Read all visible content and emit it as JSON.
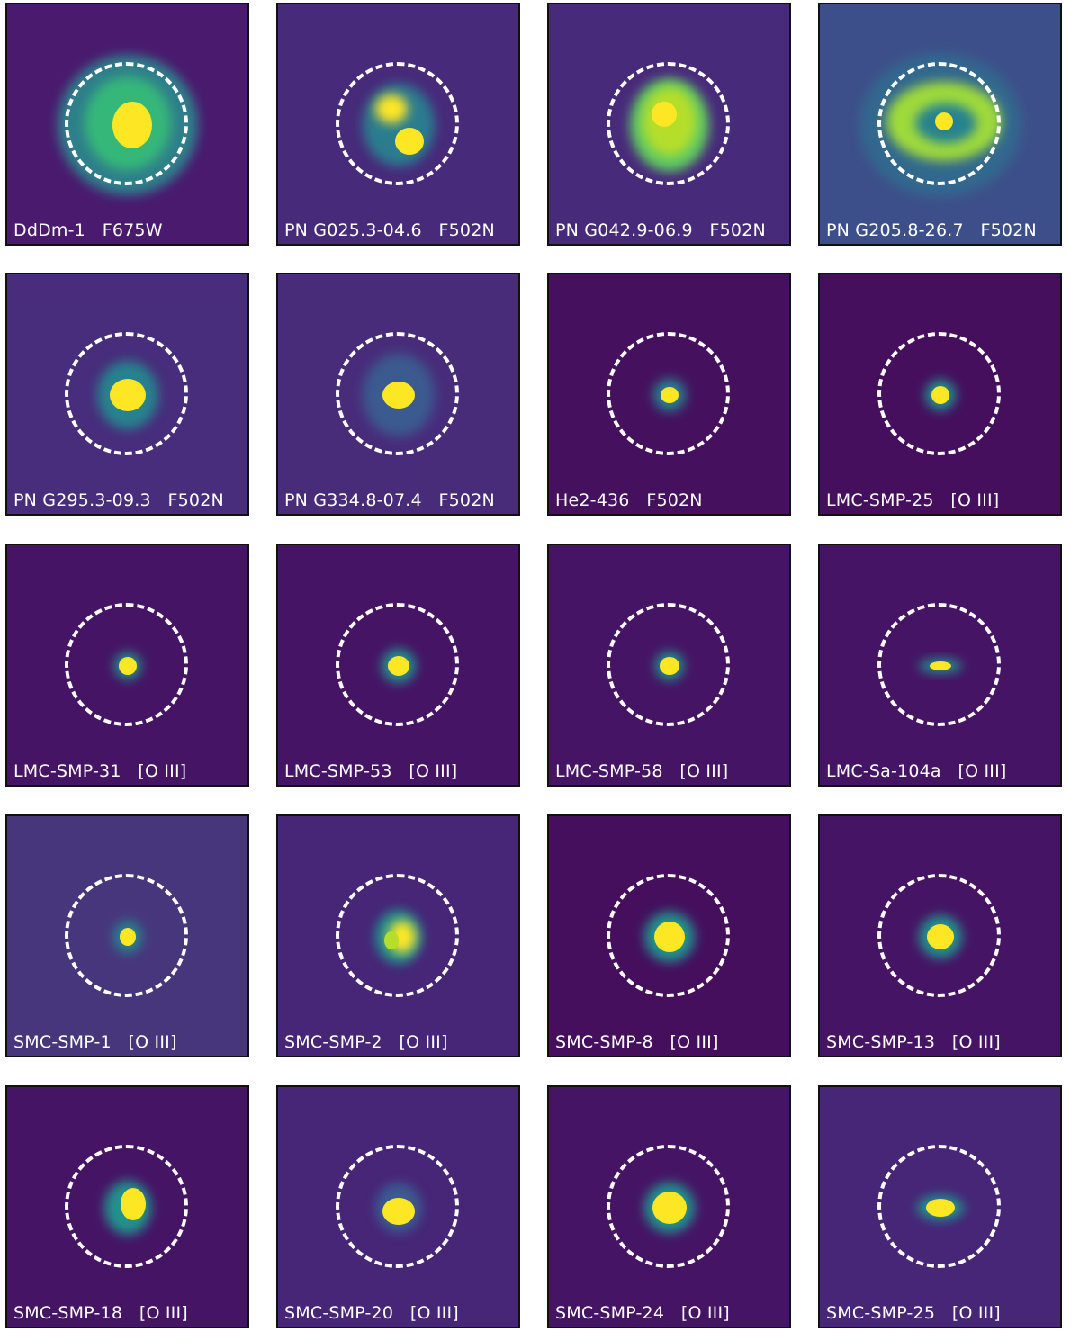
{
  "figure": {
    "colormap": [
      "#440154",
      "#482878",
      "#3e4989",
      "#31688e",
      "#26828e",
      "#1f9e89",
      "#35b779",
      "#6ece58",
      "#b5de2b",
      "#fde725"
    ],
    "panels": [
      {
        "object": "DdDm-1",
        "filter": "F675W",
        "background": "#4a1a6e",
        "blobs": [
          {
            "rx": 78,
            "ry": 78,
            "c": "#2d7f8a",
            "dx": 0,
            "dy": 0
          },
          {
            "rx": 48,
            "ry": 52,
            "c": "#35b779",
            "dx": 0,
            "dy": -2
          },
          {
            "rx": 22,
            "ry": 26,
            "c": "#fde725",
            "dx": 5,
            "dy": 0
          }
        ]
      },
      {
        "object": "PN G025.3-04.6",
        "filter": "F502N",
        "background": "#472a7a",
        "blobs": [
          {
            "rx": 40,
            "ry": 46,
            "c": "#2a7b8e",
            "dx": 0,
            "dy": 0
          },
          {
            "rx": 18,
            "ry": 16,
            "c": "#fde725",
            "dx": -8,
            "dy": -18
          },
          {
            "rx": 16,
            "ry": 15,
            "c": "#fde725",
            "dx": 12,
            "dy": 18
          }
        ]
      },
      {
        "object": "PN G042.9-06.9",
        "filter": "F502N",
        "background": "#482a7b",
        "blobs": [
          {
            "rx": 44,
            "ry": 52,
            "c": "#5ec962",
            "dx": 0,
            "dy": 0
          },
          {
            "rx": 30,
            "ry": 38,
            "c": "#b5de2b",
            "dx": 0,
            "dy": -4
          },
          {
            "rx": 14,
            "ry": 14,
            "c": "#fde725",
            "dx": -6,
            "dy": -12
          }
        ]
      },
      {
        "object": "PN G205.8-26.7",
        "filter": "F502N",
        "background": "#3d4f8a",
        "blobs": [
          {
            "rx": 90,
            "ry": 80,
            "c": "#31688e",
            "dx": 0,
            "dy": 0
          },
          {
            "rx": 64,
            "ry": 44,
            "c": "#9fda3a",
            "dx": 4,
            "dy": -4
          },
          {
            "rx": 34,
            "ry": 22,
            "c": "#26828e",
            "dx": 6,
            "dy": -2
          },
          {
            "rx": 10,
            "ry": 10,
            "c": "#fde725",
            "dx": 4,
            "dy": -4
          }
        ]
      },
      {
        "object": "PN G295.3-09.3",
        "filter": "F502N",
        "background": "#472d7b",
        "blobs": [
          {
            "rx": 34,
            "ry": 38,
            "c": "#26828e",
            "dx": 0,
            "dy": 0
          },
          {
            "rx": 20,
            "ry": 18,
            "c": "#fde725",
            "dx": 0,
            "dy": 0
          }
        ]
      },
      {
        "object": "PN G334.8-07.4",
        "filter": "F502N",
        "background": "#482c7a",
        "blobs": [
          {
            "rx": 40,
            "ry": 46,
            "c": "#3a5a90",
            "dx": 0,
            "dy": 0
          },
          {
            "rx": 18,
            "ry": 15,
            "c": "#fde725",
            "dx": 0,
            "dy": 0
          }
        ]
      },
      {
        "object": "He2-436",
        "filter": "F502N",
        "background": "#45115f",
        "blobs": [
          {
            "rx": 18,
            "ry": 18,
            "c": "#26828e",
            "dx": 0,
            "dy": 0
          },
          {
            "rx": 10,
            "ry": 9,
            "c": "#fde725",
            "dx": 0,
            "dy": 0
          }
        ]
      },
      {
        "object": "LMC-SMP-25",
        "filter": "[O III]",
        "background": "#450f5e",
        "blobs": [
          {
            "rx": 17,
            "ry": 17,
            "c": "#21918c",
            "dx": 0,
            "dy": 0
          },
          {
            "rx": 10,
            "ry": 10,
            "c": "#fde725",
            "dx": 0,
            "dy": 0
          }
        ]
      },
      {
        "object": "LMC-SMP-31",
        "filter": "[O III]",
        "background": "#461465",
        "blobs": [
          {
            "rx": 15,
            "ry": 15,
            "c": "#21918c",
            "dx": 0,
            "dy": 0
          },
          {
            "rx": 10,
            "ry": 10,
            "c": "#fde725",
            "dx": 0,
            "dy": 0
          }
        ]
      },
      {
        "object": "LMC-SMP-53",
        "filter": "[O III]",
        "background": "#461465",
        "blobs": [
          {
            "rx": 19,
            "ry": 19,
            "c": "#21918c",
            "dx": 0,
            "dy": 0
          },
          {
            "rx": 12,
            "ry": 11,
            "c": "#fde725",
            "dx": 0,
            "dy": 0
          }
        ]
      },
      {
        "object": "LMC-SMP-58",
        "filter": "[O III]",
        "background": "#461465",
        "blobs": [
          {
            "rx": 16,
            "ry": 16,
            "c": "#21918c",
            "dx": 0,
            "dy": 0
          },
          {
            "rx": 11,
            "ry": 10,
            "c": "#fde725",
            "dx": 0,
            "dy": 0
          }
        ]
      },
      {
        "object": "LMC-Sa-104a",
        "filter": "[O III]",
        "background": "#461465",
        "blobs": [
          {
            "rx": 24,
            "ry": 8,
            "c": "#21918c",
            "dx": 0,
            "dy": 0
          },
          {
            "rx": 12,
            "ry": 5,
            "c": "#fde725",
            "dx": 0,
            "dy": 0
          }
        ]
      },
      {
        "object": "SMC-SMP-1",
        "filter": "[O III]",
        "background": "#48367d",
        "blobs": [
          {
            "rx": 16,
            "ry": 18,
            "c": "#26828e",
            "dx": 0,
            "dy": 0
          },
          {
            "rx": 9,
            "ry": 10,
            "c": "#fde725",
            "dx": 0,
            "dy": 0
          }
        ]
      },
      {
        "object": "SMC-SMP-2",
        "filter": "[O III]",
        "background": "#472577",
        "blobs": [
          {
            "rx": 26,
            "ry": 30,
            "c": "#21918c",
            "dx": 0,
            "dy": 0
          },
          {
            "rx": 15,
            "ry": 18,
            "c": "#fde725",
            "dx": 4,
            "dy": 0
          },
          {
            "rx": 8,
            "ry": 10,
            "c": "#b5de2b",
            "dx": -8,
            "dy": 4
          }
        ]
      },
      {
        "object": "SMC-SMP-8",
        "filter": "[O III]",
        "background": "#450f5e",
        "blobs": [
          {
            "rx": 28,
            "ry": 28,
            "c": "#21918c",
            "dx": 0,
            "dy": 0
          },
          {
            "rx": 17,
            "ry": 17,
            "c": "#fde725",
            "dx": 0,
            "dy": 0
          }
        ]
      },
      {
        "object": "SMC-SMP-13",
        "filter": "[O III]",
        "background": "#461465",
        "blobs": [
          {
            "rx": 24,
            "ry": 24,
            "c": "#21918c",
            "dx": 0,
            "dy": 0
          },
          {
            "rx": 15,
            "ry": 14,
            "c": "#fde725",
            "dx": 0,
            "dy": 0
          }
        ]
      },
      {
        "object": "SMC-SMP-18",
        "filter": "[O III]",
        "background": "#461465",
        "blobs": [
          {
            "rx": 26,
            "ry": 30,
            "c": "#21918c",
            "dx": 0,
            "dy": 0
          },
          {
            "rx": 14,
            "ry": 18,
            "c": "#fde725",
            "dx": 6,
            "dy": -4
          }
        ]
      },
      {
        "object": "SMC-SMP-20",
        "filter": "[O III]",
        "background": "#472577",
        "blobs": [
          {
            "rx": 26,
            "ry": 28,
            "c": "#3a5a90",
            "dx": 0,
            "dy": 0
          },
          {
            "rx": 18,
            "ry": 15,
            "c": "#fde725",
            "dx": 0,
            "dy": 4
          }
        ]
      },
      {
        "object": "SMC-SMP-24",
        "filter": "[O III]",
        "background": "#461465",
        "blobs": [
          {
            "rx": 28,
            "ry": 28,
            "c": "#21918c",
            "dx": 0,
            "dy": 0
          },
          {
            "rx": 19,
            "ry": 18,
            "c": "#fde725",
            "dx": 0,
            "dy": 0
          }
        ]
      },
      {
        "object": "SMC-SMP-25",
        "filter": "[O III]",
        "background": "#472577",
        "blobs": [
          {
            "rx": 26,
            "ry": 14,
            "c": "#21918c",
            "dx": 0,
            "dy": 0
          },
          {
            "rx": 16,
            "ry": 10,
            "c": "#fde725",
            "dx": 0,
            "dy": 0
          }
        ]
      }
    ]
  }
}
